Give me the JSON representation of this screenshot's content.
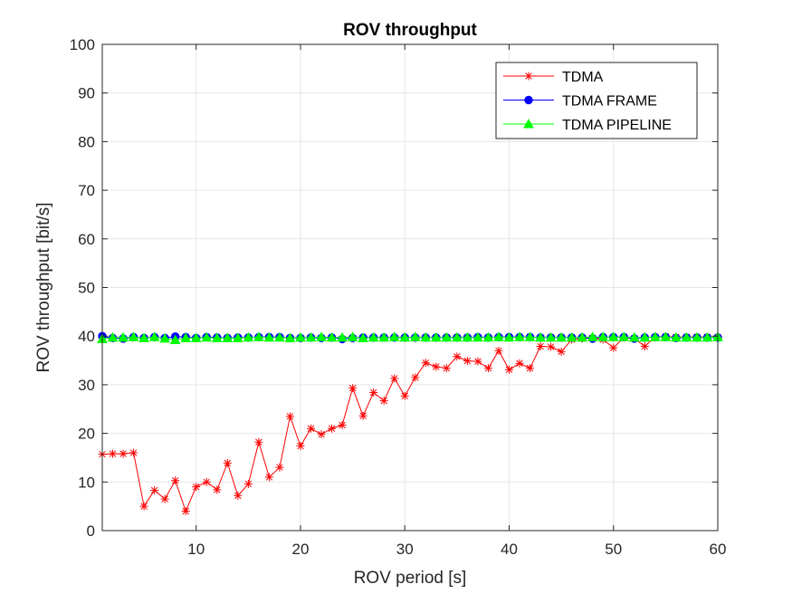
{
  "chart_data": {
    "type": "line",
    "title": "ROV throughput",
    "xlabel": "ROV period [s]",
    "ylabel": "ROV throughput [bit/s]",
    "xlim": [
      1,
      60
    ],
    "ylim": [
      0,
      100
    ],
    "xticks": [
      10,
      20,
      30,
      40,
      50,
      60
    ],
    "yticks": [
      0,
      10,
      20,
      30,
      40,
      50,
      60,
      70,
      80,
      90,
      100
    ],
    "grid": true,
    "legend_position": "top-right",
    "x": [
      1,
      2,
      3,
      4,
      5,
      6,
      7,
      8,
      9,
      10,
      11,
      12,
      13,
      14,
      15,
      16,
      17,
      18,
      19,
      20,
      21,
      22,
      23,
      24,
      25,
      26,
      27,
      28,
      29,
      30,
      31,
      32,
      33,
      34,
      35,
      36,
      37,
      38,
      39,
      40,
      41,
      42,
      43,
      44,
      45,
      46,
      47,
      48,
      49,
      50,
      51,
      52,
      53,
      54,
      55,
      56,
      57,
      58,
      59,
      60
    ],
    "series": [
      {
        "name": "TDMA",
        "color": "#ff0000",
        "marker": "asterisk",
        "values": [
          15.7,
          15.8,
          15.8,
          16.0,
          5.0,
          8.3,
          6.5,
          10.3,
          4.0,
          9.0,
          10.0,
          8.4,
          13.9,
          7.2,
          9.6,
          18.2,
          11.0,
          13.0,
          23.5,
          17.4,
          21.0,
          19.8,
          21.0,
          21.7,
          29.3,
          23.6,
          28.4,
          26.7,
          31.3,
          27.7,
          31.5,
          34.5,
          33.7,
          33.4,
          35.8,
          34.9,
          34.8,
          33.4,
          37.0,
          33.1,
          34.4,
          33.4,
          37.9,
          37.8,
          36.8,
          39.3,
          39.5,
          39.6,
          39.3,
          37.6,
          39.7,
          39.5,
          37.9,
          39.8,
          39.9,
          39.8,
          39.8,
          39.8,
          39.8,
          39.8
        ]
      },
      {
        "name": "TDMA FRAME",
        "color": "#0000ff",
        "marker": "circle",
        "values": [
          40.0,
          39.6,
          39.5,
          39.8,
          39.6,
          39.8,
          39.6,
          39.9,
          39.8,
          39.6,
          39.8,
          39.7,
          39.6,
          39.7,
          39.7,
          39.8,
          39.8,
          39.8,
          39.6,
          39.6,
          39.7,
          39.6,
          39.7,
          39.4,
          39.6,
          39.7,
          39.7,
          39.7,
          39.7,
          39.7,
          39.7,
          39.7,
          39.7,
          39.7,
          39.7,
          39.7,
          39.8,
          39.7,
          39.8,
          39.8,
          39.8,
          39.8,
          39.7,
          39.7,
          39.7,
          39.7,
          39.7,
          39.5,
          39.8,
          39.8,
          39.8,
          39.5,
          39.7,
          39.8,
          39.8,
          39.6,
          39.7,
          39.7,
          39.7,
          39.7
        ]
      },
      {
        "name": "TDMA PIPELINE",
        "color": "#00ff00",
        "marker": "triangle",
        "values": [
          39.4,
          39.7,
          39.7,
          39.8,
          39.6,
          39.8,
          39.5,
          39.2,
          39.6,
          39.6,
          39.7,
          39.6,
          39.6,
          39.6,
          39.7,
          39.8,
          39.7,
          39.7,
          39.6,
          39.7,
          39.7,
          39.8,
          39.7,
          39.7,
          39.8,
          39.6,
          39.7,
          39.7,
          39.8,
          39.7,
          39.8,
          39.7,
          39.7,
          39.7,
          39.7,
          39.7,
          39.7,
          39.7,
          39.8,
          39.7,
          39.8,
          39.8,
          39.7,
          39.7,
          39.7,
          39.7,
          39.7,
          39.8,
          39.8,
          39.8,
          39.8,
          39.7,
          39.7,
          39.8,
          39.8,
          39.7,
          39.7,
          39.7,
          39.7,
          39.8
        ]
      }
    ]
  }
}
